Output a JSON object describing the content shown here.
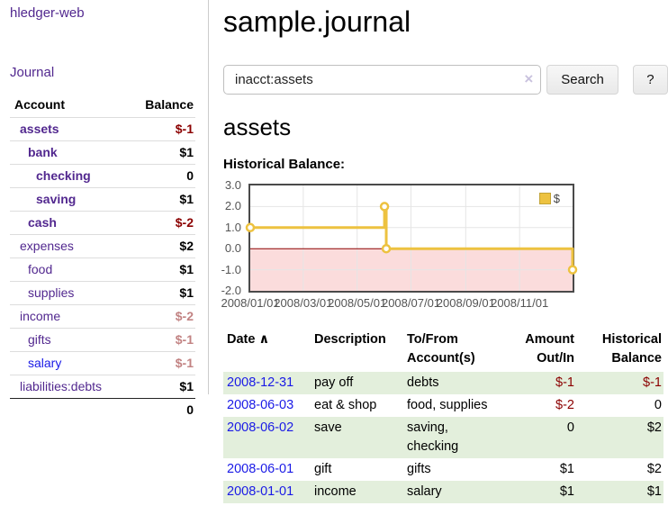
{
  "colors": {
    "link_purple": "#52288f",
    "link_blue": "#1a1ae6",
    "neg_strong": "#8b0000",
    "neg_soft": "#c28383",
    "row_green": "#e3efdc",
    "chart_yellow": "#edc240",
    "chart_pink": "#fbdcdc",
    "chart_border": "#4a4a4a",
    "axis_text": "#545454",
    "border_gray": "#cccccc"
  },
  "sidebar": {
    "brand": "hledger-web",
    "nav_journal": "Journal",
    "accounts_header": {
      "account": "Account",
      "balance": "Balance"
    },
    "accounts": [
      {
        "label": "assets",
        "balance": "$-1"
      },
      {
        "label": "bank",
        "balance": "$1"
      },
      {
        "label": "checking",
        "balance": "0"
      },
      {
        "label": "saving",
        "balance": "$1"
      },
      {
        "label": "cash",
        "balance": "$-2"
      },
      {
        "label": "expenses",
        "balance": "$2"
      },
      {
        "label": "food",
        "balance": "$1"
      },
      {
        "label": "supplies",
        "balance": "$1"
      },
      {
        "label": "income",
        "balance": "$-2"
      },
      {
        "label": "gifts",
        "balance": "$-1"
      },
      {
        "label": "salary",
        "balance": "$-1"
      },
      {
        "label": "liabilities:debts",
        "balance": "$1"
      }
    ],
    "total": "0"
  },
  "main": {
    "title": "sample.journal",
    "search": {
      "value": "inacct:assets",
      "clear_icon": "×",
      "button": "Search",
      "help_button": "?"
    },
    "account_heading": "assets",
    "chart_title": "Historical Balance:"
  },
  "chart_data": {
    "type": "line",
    "title": "Historical Balance",
    "series": [
      {
        "name": "$",
        "color": "#edc240",
        "step": true,
        "points": [
          {
            "date": "2008-01-01",
            "day": 0,
            "y": 1
          },
          {
            "date": "2008-06-01",
            "day": 152,
            "y": 2
          },
          {
            "date": "2008-06-03",
            "day": 154,
            "y": 0
          },
          {
            "date": "2008-12-31",
            "day": 365,
            "y": -1
          }
        ]
      }
    ],
    "x_range_days": 365,
    "x_ticks": [
      {
        "day": 0,
        "label": "2008/01/01"
      },
      {
        "day": 60,
        "label": "2008/03/01"
      },
      {
        "day": 121,
        "label": "2008/05/01"
      },
      {
        "day": 182,
        "label": "2008/07/01"
      },
      {
        "day": 244,
        "label": "2008/09/01"
      },
      {
        "day": 305,
        "label": "2008/11/01"
      }
    ],
    "ylim": [
      -2,
      3
    ],
    "y_ticks": [
      {
        "v": 3,
        "label": "3.0"
      },
      {
        "v": 2,
        "label": "2.0"
      },
      {
        "v": 1,
        "label": "1.0"
      },
      {
        "v": 0,
        "label": "0.0"
      },
      {
        "v": -1,
        "label": "-1.0"
      },
      {
        "v": -2,
        "label": "-2.0"
      }
    ],
    "grid": true,
    "legend": {
      "label": "$",
      "position": "top-right"
    },
    "negative_region_color": "#fbdcdc",
    "zero_line_color": "#8b0000",
    "grid_color": "#e5e5e5"
  },
  "register": {
    "headers": [
      "Date",
      "Description",
      "To/From Account(s)",
      "Amount Out/In",
      "Historical Balance"
    ],
    "sort_icon": "∧",
    "rows": [
      {
        "date": "2008-12-31",
        "description": "pay off",
        "accounts": "debts",
        "amount": "$-1",
        "balance": "$-1"
      },
      {
        "date": "2008-06-03",
        "description": "eat & shop",
        "accounts": "food, supplies",
        "amount": "$-2",
        "balance": "0"
      },
      {
        "date": "2008-06-02",
        "description": "save",
        "accounts": "saving, checking",
        "amount": "0",
        "balance": "$2"
      },
      {
        "date": "2008-06-01",
        "description": "gift",
        "accounts": "gifts",
        "amount": "$1",
        "balance": "$2"
      },
      {
        "date": "2008-01-01",
        "description": "income",
        "accounts": "salary",
        "amount": "$1",
        "balance": "$1"
      }
    ]
  }
}
